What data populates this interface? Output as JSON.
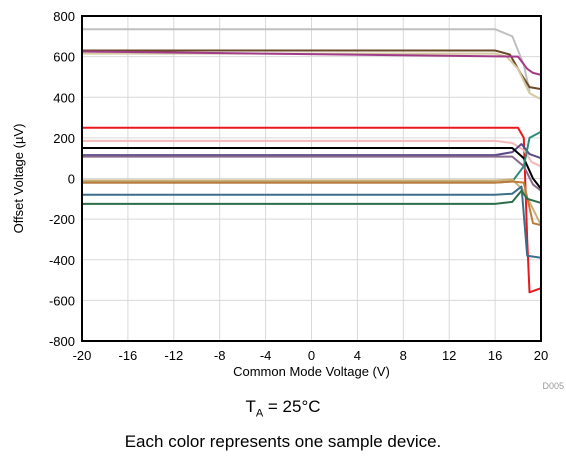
{
  "chart_data": {
    "type": "line",
    "xlabel": "Common Mode Voltage (V)",
    "ylabel": "Offset Voltage (µV)",
    "xlim": [
      -20,
      20
    ],
    "ylim": [
      -800,
      800
    ],
    "x_ticks": [
      "-20",
      "-16",
      "-12",
      "-8",
      "-4",
      "0",
      "4",
      "8",
      "12",
      "16",
      "20"
    ],
    "y_ticks": [
      "800",
      "600",
      "400",
      "200",
      "0",
      "-200",
      "-400",
      "-600",
      "-800"
    ],
    "grid": true,
    "figure_id": "D005",
    "series": [
      {
        "color": "#c0c0c0",
        "x": [
          -20,
          16,
          17.5,
          18.5,
          19
        ],
        "y": [
          735,
          735,
          700,
          560,
          430
        ]
      },
      {
        "color": "#6b4a2a",
        "x": [
          -20,
          16,
          17.3,
          18.2,
          19,
          20
        ],
        "y": [
          630,
          630,
          610,
          520,
          450,
          440
        ]
      },
      {
        "color": "#d4c9a0",
        "x": [
          -20,
          16,
          17,
          18,
          19,
          20
        ],
        "y": [
          615,
          615,
          600,
          540,
          420,
          390
        ]
      },
      {
        "color": "#a23b8a",
        "x": [
          -20,
          18,
          18.8,
          19.3,
          20
        ],
        "y": [
          625,
          600,
          540,
          520,
          510
        ]
      },
      {
        "color": "#e8191c",
        "x": [
          -20,
          18,
          18.5,
          18.8,
          19,
          20
        ],
        "y": [
          250,
          250,
          200,
          -300,
          -560,
          -540
        ]
      },
      {
        "color": "#f4b8b8",
        "x": [
          -20,
          16,
          17.5,
          18.5,
          19.2,
          20
        ],
        "y": [
          185,
          185,
          175,
          140,
          80,
          60
        ]
      },
      {
        "color": "#5a4a8a",
        "x": [
          -20,
          16,
          17.5,
          18.3,
          19,
          20
        ],
        "y": [
          115,
          115,
          130,
          170,
          120,
          100
        ]
      },
      {
        "color": "#000000",
        "x": [
          -20,
          16,
          17.5,
          18.5,
          19.3,
          20
        ],
        "y": [
          150,
          150,
          150,
          100,
          0,
          -50
        ]
      },
      {
        "color": "#8a6a8a",
        "x": [
          -20,
          16,
          17.5,
          18.5,
          19.3,
          20
        ],
        "y": [
          108,
          108,
          108,
          60,
          -30,
          -60
        ]
      },
      {
        "color": "#2e8b7a",
        "x": [
          -20,
          16,
          17.5,
          18.5,
          19,
          20
        ],
        "y": [
          -20,
          -20,
          -15,
          60,
          200,
          230
        ]
      },
      {
        "color": "#c8b27a",
        "x": [
          -20,
          16,
          17.5,
          18.5,
          19.3,
          20
        ],
        "y": [
          -10,
          -10,
          -5,
          -60,
          -150,
          -230
        ]
      },
      {
        "color": "#c07a3a",
        "x": [
          -20,
          16,
          17.5,
          18.5,
          19.3,
          20
        ],
        "y": [
          -20,
          -20,
          -15,
          -20,
          -220,
          -230
        ]
      },
      {
        "color": "#3d6e8a",
        "x": [
          -20,
          16,
          17.5,
          18.3,
          18.8,
          20
        ],
        "y": [
          -80,
          -80,
          -75,
          -40,
          -380,
          -390
        ]
      },
      {
        "color": "#2d6e4a",
        "x": [
          -20,
          16,
          17.5,
          18.3,
          18.8,
          20
        ],
        "y": [
          -125,
          -125,
          -115,
          -60,
          -100,
          -120
        ]
      }
    ]
  },
  "condition": {
    "label": "T",
    "subscript": "A",
    "value": " = 25°C"
  },
  "caption": "Each color represents one sample device."
}
